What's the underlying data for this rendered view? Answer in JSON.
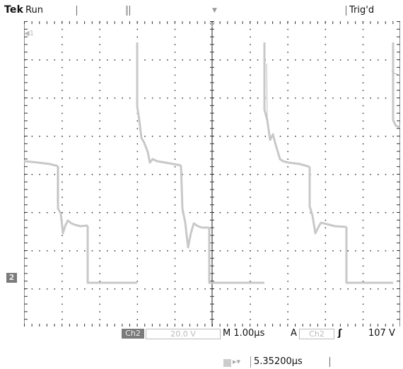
{
  "header": {
    "brand": "Tek",
    "run_state": "Run",
    "trigger_status": "Trig'd"
  },
  "channel_markers": {
    "ch2": "2"
  },
  "readout": {
    "channel": "Ch2",
    "volts_per_div": "20.0 V",
    "timebase": "M 1.00µs",
    "trigger_mode": "A",
    "trigger_source": "Ch2",
    "trigger_slope_icon": "rising-edge-icon",
    "trigger_level": "107 V",
    "trigger_position": "5.35200µs"
  },
  "colors": {
    "trace": "#c8c8c8",
    "graticule": "#222222",
    "label_box": "#7b7b7b"
  }
}
